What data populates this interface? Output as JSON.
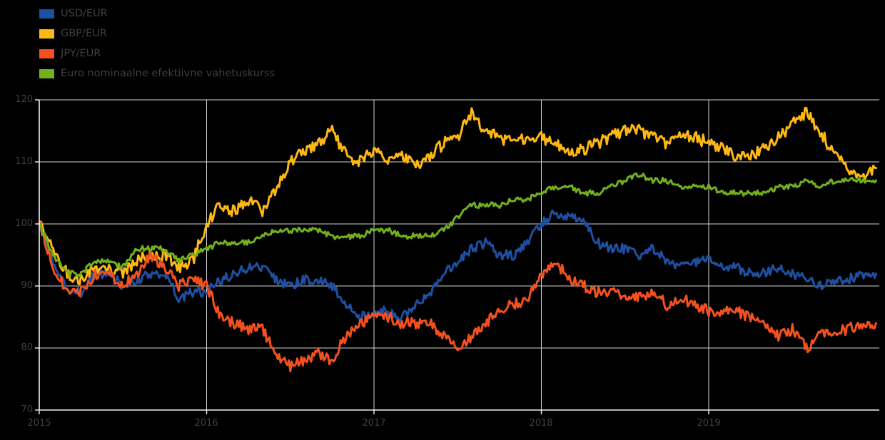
{
  "chart_data": {
    "type": "line",
    "title": "",
    "x_interval": "monthly",
    "x_start": "2015-01",
    "x_end": "2020-01",
    "x_tick_labels": [
      "2015",
      "2016",
      "2017",
      "2018",
      "2019"
    ],
    "x_tick_month_index": [
      0,
      12,
      24,
      36,
      48
    ],
    "y_tick_labels": [
      "120",
      "110",
      "100",
      "90",
      "80",
      "70"
    ],
    "y_ticks": [
      120,
      110,
      100,
      90,
      80,
      70
    ],
    "ylim": [
      70,
      120
    ],
    "grid": true,
    "legend_position": "top-left",
    "background_color": "#000000",
    "grid_color": "#d4d4d4",
    "axis_color": "#f0f0f0",
    "text_color": "#3f3f3f",
    "series": [
      {
        "id": "usd-eur",
        "name": "USD/EUR",
        "color": "#1f4fa0",
        "noise": 0.8,
        "values": [
          100,
          94,
          89,
          89,
          92,
          92,
          90,
          91,
          92,
          92,
          88,
          89,
          89,
          91,
          92,
          93,
          93,
          91,
          90,
          91,
          91,
          90,
          87,
          85,
          86,
          86,
          85,
          87,
          89,
          92,
          94,
          96,
          97,
          95,
          95,
          97,
          100,
          102,
          101,
          101,
          97,
          96,
          96,
          95,
          96,
          94,
          93,
          94,
          94,
          93,
          93,
          92,
          92,
          93,
          92,
          91,
          90,
          91,
          91,
          92,
          92
        ]
      },
      {
        "id": "gbp-eur",
        "name": "GBP/EUR",
        "color": "#fdb813",
        "noise": 1.0,
        "values": [
          100,
          96,
          92,
          91,
          93,
          93,
          92,
          94,
          95,
          95,
          93,
          94,
          100,
          103,
          102,
          104,
          102,
          106,
          110,
          112,
          113,
          115,
          111,
          110,
          112,
          110,
          111,
          109,
          111,
          113,
          114,
          118,
          115,
          114,
          113,
          114,
          114,
          113,
          112,
          112,
          113,
          114,
          115,
          115,
          114,
          113,
          114,
          114,
          113,
          112,
          111,
          111,
          112,
          114,
          116,
          118,
          115,
          111,
          109,
          108,
          109
        ]
      },
      {
        "id": "jpy-eur",
        "name": "JPY/EUR",
        "color": "#f4511e",
        "noise": 0.9,
        "values": [
          100,
          93,
          89,
          89,
          92,
          92,
          90,
          92,
          95,
          93,
          90,
          91,
          90,
          85,
          84,
          83,
          83,
          79,
          77,
          78,
          79,
          78,
          82,
          84,
          85,
          85,
          84,
          84,
          84,
          82,
          80,
          82,
          84,
          86,
          87,
          88,
          92,
          94,
          91,
          90,
          89,
          89,
          88,
          88,
          89,
          87,
          88,
          87,
          86,
          86,
          86,
          85,
          84,
          82,
          83,
          80,
          82,
          83,
          83,
          84,
          84
        ]
      },
      {
        "id": "euro-neer",
        "name": "Euro nominaalne efektiivne vahetuskurss",
        "color": "#72b01d",
        "noise": 0.45,
        "values": [
          100,
          95,
          92,
          92,
          94,
          94,
          93,
          96,
          96,
          96,
          94,
          95,
          96,
          97,
          97,
          97,
          98,
          99,
          99,
          99,
          99,
          98,
          98,
          98,
          99,
          99,
          98,
          98,
          98,
          99,
          101,
          103,
          103,
          103,
          104,
          104,
          105,
          106,
          106,
          105,
          105,
          106,
          107,
          108,
          107,
          107,
          106,
          106,
          106,
          105,
          105,
          105,
          105,
          106,
          106,
          107,
          106,
          107,
          107,
          107,
          107
        ]
      }
    ]
  }
}
